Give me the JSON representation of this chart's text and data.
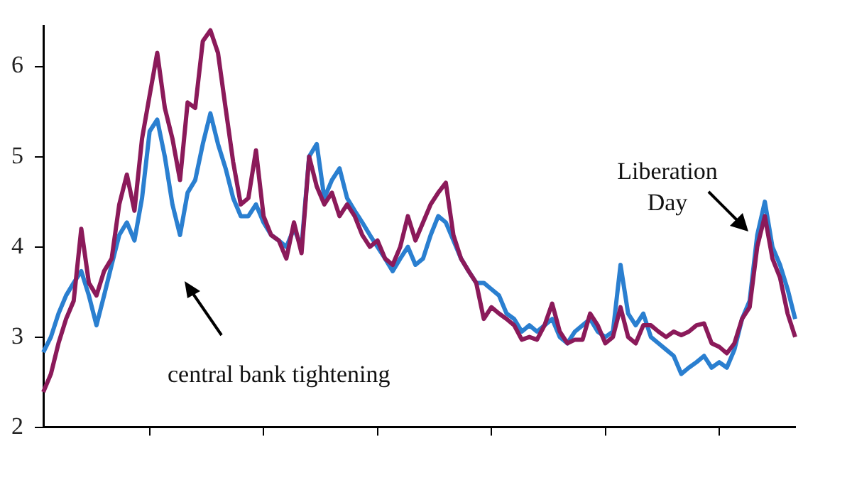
{
  "chart_data": {
    "type": "line",
    "categories": [
      null,
      null,
      null,
      null,
      null,
      null,
      null,
      null,
      null,
      null,
      null,
      null,
      null,
      null,
      null,
      null,
      null,
      null,
      null,
      null,
      null,
      null,
      null,
      null,
      null,
      null,
      null,
      null,
      null,
      null,
      null,
      null,
      null,
      null,
      null,
      null,
      null,
      null,
      null,
      null,
      null,
      null,
      null,
      null,
      null,
      null,
      null,
      null,
      null,
      null,
      null,
      null,
      null,
      null,
      null,
      null,
      null,
      null,
      null,
      null,
      null,
      null,
      null,
      null,
      null,
      null,
      null,
      null,
      null,
      null,
      null,
      null,
      null,
      null,
      null,
      null,
      null,
      null,
      null,
      null,
      null,
      null,
      null,
      null,
      null,
      null,
      null,
      null,
      null,
      null,
      null,
      null,
      null,
      null,
      null,
      null,
      null,
      null,
      null,
      null
    ],
    "series": [
      {
        "color": "#8b1a5a",
        "values": [
          2.39,
          2.59,
          2.93,
          3.2,
          3.4,
          4.2,
          3.6,
          3.46,
          3.73,
          3.87,
          4.47,
          4.8,
          4.4,
          5.2,
          5.68,
          6.15,
          5.54,
          5.2,
          4.74,
          5.6,
          5.54,
          6.28,
          6.4,
          6.15,
          5.54,
          4.94,
          4.47,
          4.54,
          5.07,
          4.34,
          4.13,
          4.07,
          3.87,
          4.27,
          3.93,
          5.0,
          4.67,
          4.47,
          4.6,
          4.34,
          4.47,
          4.34,
          4.13,
          4.0,
          4.07,
          3.87,
          3.8,
          4.0,
          4.34,
          4.07,
          4.27,
          4.47,
          4.6,
          4.71,
          4.13,
          3.87,
          3.73,
          3.6,
          3.2,
          3.33,
          3.26,
          3.2,
          3.13,
          2.97,
          3.0,
          2.97,
          3.13,
          3.37,
          3.06,
          2.93,
          2.97,
          2.97,
          3.26,
          3.13,
          2.93,
          3.0,
          3.33,
          3.0,
          2.93,
          3.13,
          3.13,
          3.06,
          3.0,
          3.06,
          3.02,
          3.06,
          3.13,
          3.15,
          2.93,
          2.89,
          2.82,
          2.93,
          3.2,
          3.33,
          4.0,
          4.34,
          3.87,
          3.66,
          3.26,
          3.0
        ]
      },
      {
        "color": "#2a7fd0",
        "values": [
          2.83,
          3.0,
          3.26,
          3.46,
          3.6,
          3.73,
          3.46,
          3.13,
          3.46,
          3.8,
          4.13,
          4.27,
          4.07,
          4.54,
          5.28,
          5.41,
          5.0,
          4.47,
          4.13,
          4.6,
          4.74,
          5.14,
          5.48,
          5.14,
          4.87,
          4.54,
          4.34,
          4.34,
          4.47,
          4.27,
          4.13,
          4.07,
          4.0,
          4.2,
          4.0,
          5.0,
          5.14,
          4.54,
          4.74,
          4.87,
          4.54,
          4.4,
          4.27,
          4.13,
          4.0,
          3.87,
          3.73,
          3.87,
          4.0,
          3.8,
          3.87,
          4.13,
          4.34,
          4.27,
          4.07,
          3.87,
          3.73,
          3.6,
          3.6,
          3.53,
          3.46,
          3.26,
          3.2,
          3.06,
          3.13,
          3.06,
          3.13,
          3.2,
          3.0,
          2.93,
          3.06,
          3.13,
          3.2,
          3.06,
          3.0,
          3.06,
          3.8,
          3.26,
          3.13,
          3.26,
          3.0,
          2.93,
          2.86,
          2.79,
          2.59,
          2.66,
          2.72,
          2.79,
          2.66,
          2.72,
          2.66,
          2.86,
          3.2,
          3.4,
          4.13,
          4.5,
          4.0,
          3.8,
          3.53,
          3.2
        ]
      }
    ],
    "ylim": [
      2,
      6.45
    ],
    "yticks": [
      2,
      3,
      4,
      5,
      6
    ],
    "grid": false,
    "legend": false,
    "marker": "none",
    "line_style": "solid",
    "annotations": [
      "central bank tightening",
      "Liberation Day"
    ]
  }
}
